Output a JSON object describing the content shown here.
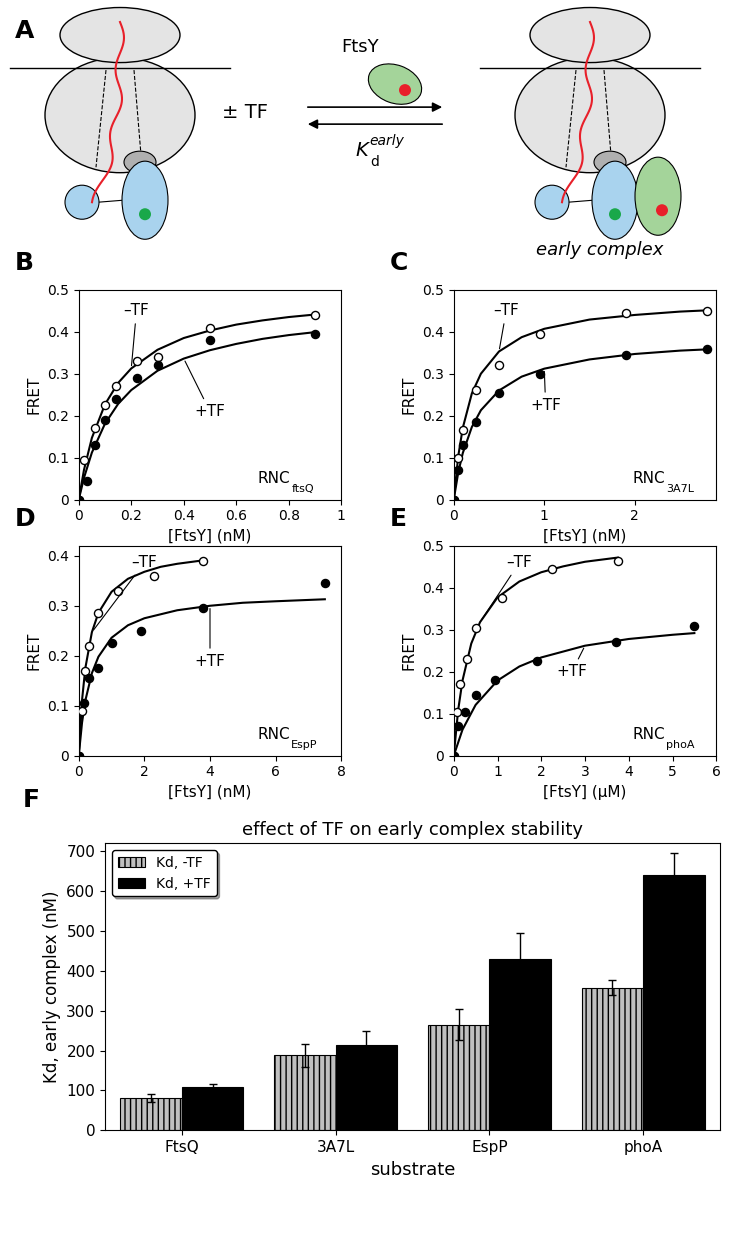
{
  "diagram": {
    "panel": "A",
    "reactant_label": "± TF",
    "ligand": "FtsY",
    "constant": {
      "symbol": "K",
      "subscript": "d",
      "superscript": "early"
    },
    "product_label": "early complex"
  },
  "chart_data": [
    {
      "type": "scatter",
      "panel": "B",
      "xlabel": "[FtsY] (nM)",
      "ylabel": "FRET",
      "label": {
        "text": "RNC",
        "subscript": "ftsQ"
      },
      "xlim": [
        0,
        1
      ],
      "xticks": [
        0,
        0.2,
        0.4,
        0.6,
        0.8,
        1
      ],
      "ylim": [
        0,
        0.5
      ],
      "yticks": [
        0,
        0.1,
        0.2,
        0.3,
        0.4,
        0.5
      ],
      "series": [
        {
          "name": "–TF",
          "color": "#000000",
          "marker": "circle_open",
          "x": [
            0,
            0.02,
            0.06,
            0.1,
            0.14,
            0.22,
            0.3,
            0.5,
            0.9
          ],
          "values": [
            0,
            0.095,
            0.17,
            0.225,
            0.27,
            0.33,
            0.34,
            0.41,
            0.44
          ],
          "fit": {
            "x": [
              0,
              0.02,
              0.05,
              0.1,
              0.15,
              0.2,
              0.3,
              0.4,
              0.5,
              0.6,
              0.7,
              0.8,
              0.9
            ],
            "values": [
              0,
              0.071,
              0.147,
              0.227,
              0.278,
              0.3125,
              0.357,
              0.385,
              0.403,
              0.417,
              0.427,
              0.435,
              0.441
            ]
          }
        },
        {
          "name": "+TF",
          "color": "#000000",
          "marker": "circle_filled",
          "x": [
            0,
            0.03,
            0.06,
            0.1,
            0.14,
            0.22,
            0.3,
            0.5,
            0.9
          ],
          "values": [
            0,
            0.045,
            0.13,
            0.19,
            0.24,
            0.29,
            0.32,
            0.38,
            0.395
          ],
          "fit": {
            "x": [
              0,
              0.02,
              0.05,
              0.1,
              0.15,
              0.2,
              0.3,
              0.4,
              0.5,
              0.6,
              0.7,
              0.8,
              0.9
            ],
            "values": [
              0,
              0.052,
              0.112,
              0.181,
              0.228,
              0.261,
              0.307,
              0.336,
              0.356,
              0.371,
              0.383,
              0.392,
              0.399
            ]
          }
        }
      ]
    },
    {
      "type": "scatter",
      "panel": "C",
      "xlabel": "[FtsY] (nM)",
      "ylabel": "FRET",
      "label": {
        "text": "RNC",
        "subscript": "3A7L"
      },
      "xlim": [
        0,
        2.9
      ],
      "xticks": [
        0,
        1,
        2
      ],
      "ylim": [
        0,
        0.5
      ],
      "yticks": [
        0,
        0.1,
        0.2,
        0.3,
        0.4,
        0.5
      ],
      "series": [
        {
          "name": "–TF",
          "color": "#000000",
          "marker": "circle_open",
          "x": [
            0,
            0.05,
            0.1,
            0.25,
            0.5,
            0.95,
            1.9,
            2.8
          ],
          "values": [
            0,
            0.1,
            0.165,
            0.26,
            0.32,
            0.395,
            0.445,
            0.45
          ],
          "fit": {
            "x": [
              0,
              0.05,
              0.1,
              0.2,
              0.3,
              0.5,
              0.75,
              1,
              1.5,
              2,
              2.5,
              2.8
            ],
            "values": [
              0,
              0.104,
              0.171,
              0.253,
              0.3,
              0.353,
              0.387,
              0.407,
              0.429,
              0.44,
              0.448,
              0.451
            ]
          }
        },
        {
          "name": "+TF",
          "color": "#000000",
          "marker": "circle_filled",
          "x": [
            0,
            0.05,
            0.1,
            0.25,
            0.5,
            0.95,
            1.9,
            2.8
          ],
          "values": [
            0,
            0.07,
            0.13,
            0.185,
            0.255,
            0.3,
            0.345,
            0.36
          ],
          "fit": {
            "x": [
              0,
              0.05,
              0.1,
              0.2,
              0.3,
              0.5,
              0.75,
              1,
              1.5,
              2,
              2.5,
              2.8
            ],
            "values": [
              0,
              0.065,
              0.111,
              0.173,
              0.213,
              0.26,
              0.293,
              0.312,
              0.334,
              0.347,
              0.355,
              0.358
            ]
          }
        }
      ]
    },
    {
      "type": "scatter",
      "panel": "D",
      "xlabel": "[FtsY] (nM)",
      "ylabel": "FRET",
      "label": {
        "text": "RNC",
        "subscript": "EspP"
      },
      "xlim": [
        0,
        8
      ],
      "xticks": [
        0,
        2,
        4,
        6,
        8
      ],
      "ylim": [
        0,
        0.42
      ],
      "yticks": [
        0,
        0.1,
        0.2,
        0.3,
        0.4
      ],
      "series": [
        {
          "name": "–TF",
          "color": "#000000",
          "marker": "circle_open",
          "x": [
            0,
            0.1,
            0.2,
            0.3,
            0.6,
            1.2,
            2.3,
            3.8
          ],
          "values": [
            0,
            0.09,
            0.17,
            0.22,
            0.285,
            0.33,
            0.36,
            0.39
          ],
          "fit": {
            "x": [
              0,
              0.1,
              0.2,
              0.4,
              0.6,
              1,
              1.5,
              2,
              2.5,
              3,
              3.8
            ],
            "values": [
              0,
              0.111,
              0.175,
              0.247,
              0.286,
              0.328,
              0.354,
              0.368,
              0.378,
              0.384,
              0.391
            ]
          }
        },
        {
          "name": "+TF",
          "color": "#000000",
          "marker": "circle_filled",
          "x": [
            0,
            0.15,
            0.3,
            0.6,
            1.0,
            1.9,
            3.8,
            7.5
          ],
          "values": [
            0,
            0.105,
            0.155,
            0.175,
            0.225,
            0.25,
            0.295,
            0.345
          ],
          "fit": {
            "x": [
              0,
              0.1,
              0.2,
              0.4,
              0.6,
              1,
              1.5,
              2,
              3,
              4,
              5,
              6,
              7.5
            ],
            "values": [
              0,
              0.066,
              0.11,
              0.165,
              0.198,
              0.236,
              0.261,
              0.275,
              0.291,
              0.3,
              0.306,
              0.309,
              0.313
            ]
          }
        }
      ]
    },
    {
      "type": "scatter",
      "panel": "E",
      "xlabel": "[FtsY] (μM)",
      "ylabel": "FRET",
      "label": {
        "text": "RNC",
        "subscript": "phoA"
      },
      "xlim": [
        0,
        6
      ],
      "xticks": [
        0,
        1,
        2,
        3,
        4,
        5,
        6
      ],
      "ylim": [
        0,
        0.5
      ],
      "yticks": [
        0,
        0.1,
        0.2,
        0.3,
        0.4,
        0.5
      ],
      "series": [
        {
          "name": "–TF",
          "color": "#000000",
          "marker": "circle_open",
          "x": [
            0,
            0.07,
            0.15,
            0.3,
            0.5,
            1.1,
            2.25,
            3.75
          ],
          "values": [
            0,
            0.105,
            0.17,
            0.23,
            0.305,
            0.375,
            0.445,
            0.465
          ],
          "fit": {
            "x": [
              0,
              0.1,
              0.2,
              0.4,
              0.6,
              1,
              1.5,
              2,
              2.5,
              3,
              3.75
            ],
            "values": [
              0,
              0.108,
              0.179,
              0.267,
              0.318,
              0.377,
              0.415,
              0.437,
              0.451,
              0.462,
              0.472
            ]
          }
        },
        {
          "name": "+TF",
          "color": "#000000",
          "marker": "circle_filled",
          "x": [
            0,
            0.1,
            0.25,
            0.5,
            0.95,
            1.9,
            3.7,
            5.5
          ],
          "values": [
            0,
            0.07,
            0.105,
            0.145,
            0.18,
            0.225,
            0.27,
            0.31
          ],
          "fit": {
            "x": [
              0,
              0.2,
              0.5,
              1,
              1.5,
              2,
              3,
              4,
              5,
              5.5
            ],
            "values": [
              0,
              0.062,
              0.121,
              0.179,
              0.2125,
              0.234,
              0.262,
              0.278,
              0.288,
              0.292
            ]
          }
        }
      ]
    },
    {
      "type": "bar",
      "panel": "F",
      "title": "effect of TF on early complex stability",
      "xlabel": "substrate",
      "ylabel": "Kd, early complex (nM)",
      "categories": [
        "FtsQ",
        "3A7L",
        "EspP",
        "phoA"
      ],
      "ylim": [
        0,
        720
      ],
      "yticks": [
        0,
        100,
        200,
        300,
        400,
        500,
        600,
        700
      ],
      "legend": "upper left",
      "series": [
        {
          "name": "Kd, -TF",
          "color": "#c0c0c0",
          "values": [
            80,
            188,
            265,
            358
          ],
          "errors": [
            10,
            28,
            38,
            20
          ]
        },
        {
          "name": "Kd, +TF",
          "color": "#000000",
          "values": [
            108,
            215,
            430,
            640
          ],
          "errors": [
            8,
            35,
            65,
            55
          ]
        }
      ]
    }
  ]
}
